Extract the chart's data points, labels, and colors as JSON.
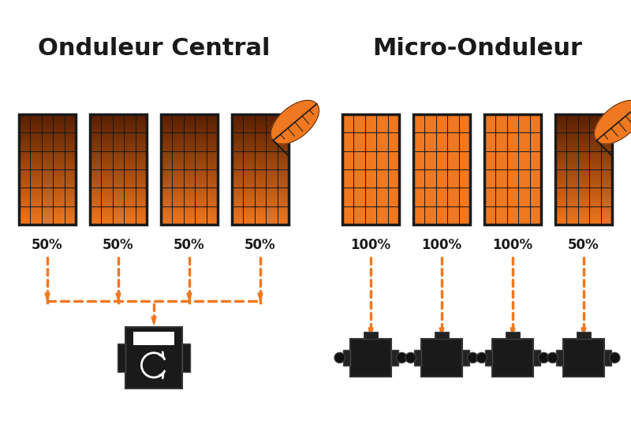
{
  "title_left": "Onduleur Central",
  "title_right": "Micro-Onduleur",
  "bg_color": "#ffffff",
  "orange": "#F07820",
  "dark_orange_top": "#5a2000",
  "dark_orange_mid": "#8B3A00",
  "black": "#1a1a1a",
  "left_percentages": [
    "50%",
    "50%",
    "50%",
    "50%"
  ],
  "right_percentages": [
    "100%",
    "100%",
    "100%",
    "50%"
  ],
  "figsize": [
    8.0,
    5.66
  ],
  "dpi": 100
}
